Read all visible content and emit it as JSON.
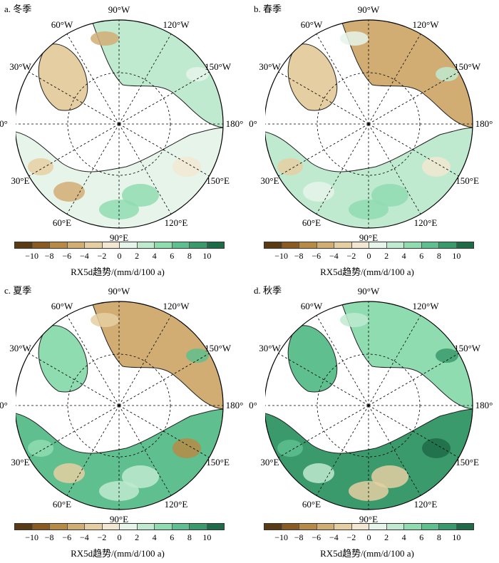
{
  "panels": [
    {
      "title": "a. 冬季",
      "season": "winter"
    },
    {
      "title": "b. 春季",
      "season": "spring"
    },
    {
      "title": "c. 夏季",
      "season": "summer"
    },
    {
      "title": "d. 秋季",
      "season": "autumn"
    }
  ],
  "longitude_labels": {
    "top": "90°W",
    "top_right": "120°W",
    "right_upper": "150°W",
    "right": "180°",
    "right_lower": "150°E",
    "bottom_right": "120°E",
    "bottom": "90°E",
    "bottom_left": "60°E",
    "left_lower": "30°E",
    "left": "0°",
    "left_upper": "30°W",
    "top_left": "60°W"
  },
  "colorbar": {
    "ticks": [
      "−10",
      "−8",
      "−6",
      "−4",
      "−2",
      "0",
      "2",
      "4",
      "6",
      "8",
      "10"
    ],
    "colors": [
      "#5a3a12",
      "#8a5a22",
      "#b78947",
      "#d1ad74",
      "#e5cfa2",
      "#f2e8d2",
      "#e6f4ea",
      "#bfead0",
      "#8fdcb1",
      "#5fbf8e",
      "#3b9a6c",
      "#1f6b48"
    ],
    "title": "RX5d趋势/(mm/d/100 a)"
  }
}
